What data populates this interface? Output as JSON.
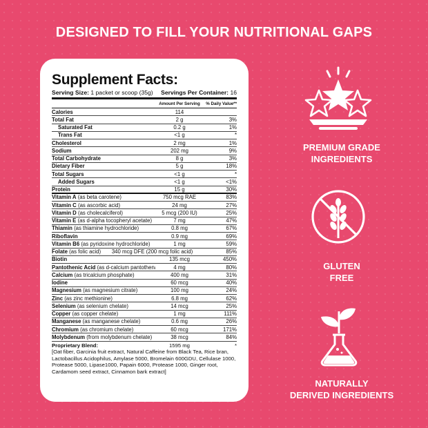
{
  "headline": "DESIGNED TO FILL YOUR NUTRITIONAL GAPS",
  "panel": {
    "title": "Supplement Facts:",
    "serving_size_label": "Serving Size:",
    "serving_size_value": "1 packet or scoop (35g)",
    "servings_label": "Servings Per Container:",
    "servings_value": "16",
    "col_amount": "Amount Per Serving",
    "col_dv": "% Daily Value**",
    "rows": [
      {
        "name": "Calories",
        "sub": "",
        "amount": "114",
        "dv": ""
      },
      {
        "name": "Total Fat",
        "sub": "",
        "amount": "2 g",
        "dv": "3%"
      },
      {
        "name": "Saturated Fat",
        "sub": "",
        "amount": "0.2 g",
        "dv": "1%"
      },
      {
        "name": "Trans Fat",
        "sub": "",
        "amount": "<1 g",
        "dv": "*"
      },
      {
        "name": "Cholesterol",
        "sub": "",
        "amount": "2 mg",
        "dv": "1%"
      },
      {
        "name": "Sodium",
        "sub": "",
        "amount": "202 mg",
        "dv": "9%"
      },
      {
        "name": "Total Carbohydrate",
        "sub": "",
        "amount": "8 g",
        "dv": "3%"
      },
      {
        "name": "Dietary Fiber",
        "sub": "",
        "amount": "5 g",
        "dv": "18%"
      },
      {
        "name": "Total Sugars",
        "sub": "",
        "amount": "<1 g",
        "dv": "*"
      },
      {
        "name": "Added Sugars",
        "sub": "",
        "amount": "<1 g",
        "dv": "<1%"
      },
      {
        "name": "Protein",
        "sub": "",
        "amount": "15 g",
        "dv": "30%"
      },
      {
        "name": "Vitamin A",
        "sub": "(as beta carotene)",
        "amount": "750 mcg RAE",
        "dv": "83%"
      },
      {
        "name": "Vitamin C",
        "sub": "(as ascorbic acid)",
        "amount": "24 mg",
        "dv": "27%"
      },
      {
        "name": "Vitamin D",
        "sub": "(as cholecalciferol)",
        "amount": "5 mcg (200 IU)",
        "dv": "25%"
      },
      {
        "name": "Vitamin E",
        "sub": "(as d-alpha tocopheryl acetate)",
        "amount": "7 mg",
        "dv": "47%"
      },
      {
        "name": "Thiamin",
        "sub": "(as thiamine hydrochloride)",
        "amount": "0.8 mg",
        "dv": "67%"
      },
      {
        "name": "Riboflavin",
        "sub": "",
        "amount": "0.9 mg",
        "dv": "69%"
      },
      {
        "name": "Vitamin B6",
        "sub": "(as pyridoxine hydrochloride)",
        "amount": "1 mg",
        "dv": "59%"
      },
      {
        "name": "Folate",
        "sub": "(as folic acid)",
        "amount": "340 mcg DFE (200 mcg folic acid)",
        "dv": "85%"
      },
      {
        "name": "Biotin",
        "sub": "",
        "amount": "135 mcg",
        "dv": "450%"
      },
      {
        "name": "Pantothenic Acid",
        "sub": "(as d-calcium pantothenate)",
        "amount": "4 mg",
        "dv": "80%"
      },
      {
        "name": "Calcium",
        "sub": "(as tricalcium phosphate)",
        "amount": "400 mg",
        "dv": "31%"
      },
      {
        "name": "Iodine",
        "sub": "",
        "amount": "60 mcg",
        "dv": "40%"
      },
      {
        "name": "Magnesium",
        "sub": "(as magnesium citrate)",
        "amount": "100 mg",
        "dv": "24%"
      },
      {
        "name": "Zinc",
        "sub": "(as zinc methionine)",
        "amount": "6.8 mg",
        "dv": "62%"
      },
      {
        "name": "Selenium",
        "sub": "(as selenium chelate)",
        "amount": "14 mcg",
        "dv": "25%"
      },
      {
        "name": "Copper",
        "sub": "(as copper chelate)",
        "amount": "1 mg",
        "dv": "111%"
      },
      {
        "name": "Manganese",
        "sub": "(as manganese chelate)",
        "amount": "0.6 mg",
        "dv": "26%"
      },
      {
        "name": "Chromium",
        "sub": "(as chromium chelate)",
        "amount": "60 mcg",
        "dv": "171%"
      },
      {
        "name": "Molybdenum",
        "sub": "(from molybdenum chelate)",
        "amount": "38 mcg",
        "dv": "84%"
      }
    ],
    "blend_name": "Proprietary Blend:",
    "blend_amount": "1595 mg",
    "blend_dv": "*",
    "blend_text": "[Oat fiber, Garcinia fruit extract, Natural Caffeine from Black Tea, Rice bran, Lactobacillus Acidophilus, Amylase 5000, Bromelain 600GDU, Cellulase 1000, Protease 5000, Lipase1000, Papain 6000, Protease 1000, Ginger root, Cardamom seed extract, Cinnamon bark extract]"
  },
  "features": [
    {
      "icon": "stars-icon",
      "line1": "PREMIUM GRADE",
      "line2": "INGREDIENTS"
    },
    {
      "icon": "gluten-free-icon",
      "line1": "GLUTEN",
      "line2": "FREE"
    },
    {
      "icon": "flask-plant-icon",
      "line1": "NATURALLY",
      "line2": "DERIVED INGREDIENTS"
    }
  ],
  "colors": {
    "background": "#e8496e",
    "panel": "#ffffff",
    "text": "#111111",
    "feature_text": "#ffffff"
  }
}
